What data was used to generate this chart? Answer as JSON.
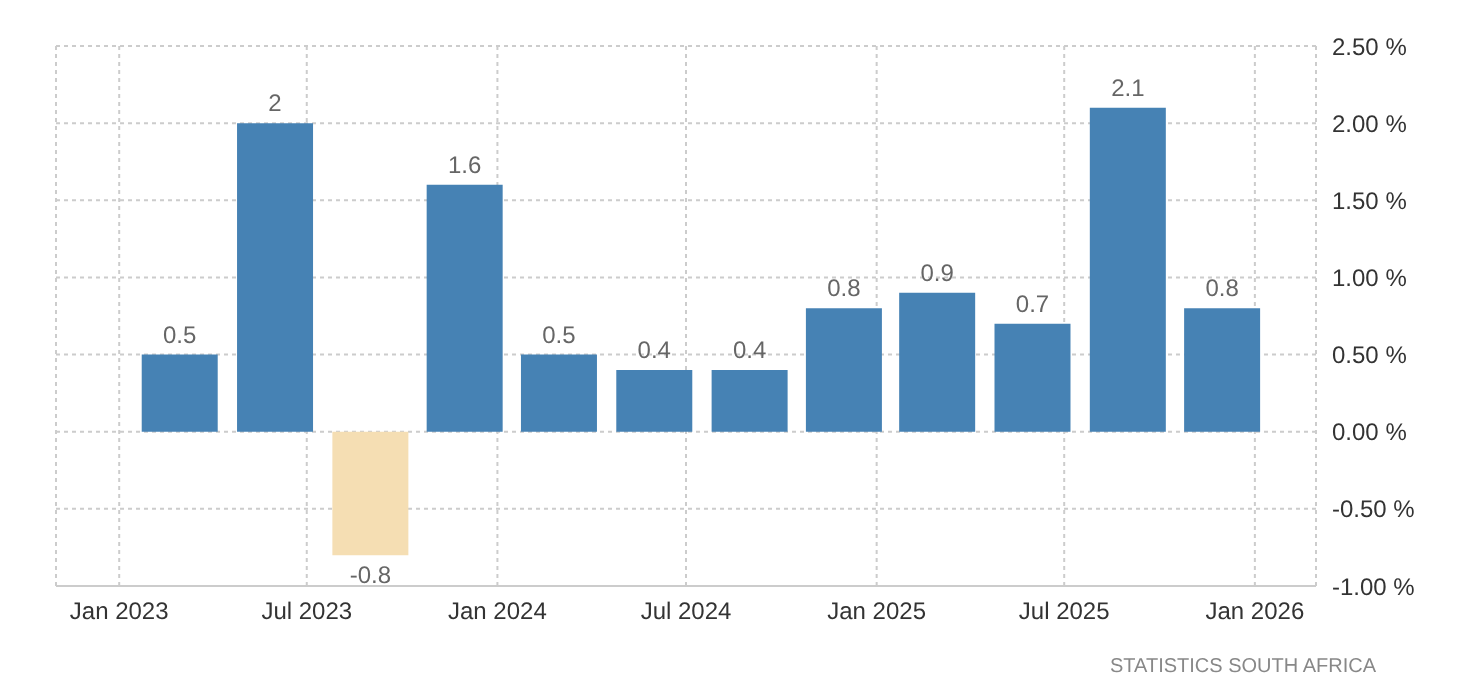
{
  "chart_data": {
    "type": "bar",
    "x": [
      "2023-03",
      "2023-06",
      "2023-09",
      "2023-12",
      "2024-03",
      "2024-06",
      "2024-09",
      "2024-12",
      "2025-03",
      "2025-06",
      "2025-09",
      "2025-12"
    ],
    "values": [
      0.5,
      2,
      -0.8,
      1.6,
      0.5,
      0.4,
      0.4,
      0.8,
      0.9,
      0.7,
      2.1,
      0.8
    ],
    "colors": [
      "#4682b4",
      "#4682b4",
      "#f5deb3",
      "#4682b4",
      "#4682b4",
      "#4682b4",
      "#4682b4",
      "#4682b4",
      "#4682b4",
      "#4682b4",
      "#4682b4",
      "#4682b4"
    ],
    "data_labels": true,
    "xlim": [
      "2022-11",
      "2026-03"
    ],
    "xticks": [
      {
        "value": "2023-01",
        "label": "Jan 2023"
      },
      {
        "value": "2023-07",
        "label": "Jul 2023"
      },
      {
        "value": "2024-01",
        "label": "Jan 2024"
      },
      {
        "value": "2024-07",
        "label": "Jul 2024"
      },
      {
        "value": "2025-01",
        "label": "Jan 2025"
      },
      {
        "value": "2025-07",
        "label": "Jul 2025"
      },
      {
        "value": "2026-01",
        "label": "Jan 2026"
      }
    ],
    "ylim": [
      -1,
      2.5
    ],
    "yticks": [
      {
        "value": -1,
        "label": "-1.00 %"
      },
      {
        "value": -0.5,
        "label": "-0.50 %"
      },
      {
        "value": 0,
        "label": "0.00 %"
      },
      {
        "value": 0.5,
        "label": "0.50 %"
      },
      {
        "value": 1,
        "label": "1.00 %"
      },
      {
        "value": 1.5,
        "label": "1.50 %"
      },
      {
        "value": 2,
        "label": "2.00 %"
      },
      {
        "value": 2.5,
        "label": "2.50 %"
      }
    ],
    "grid": true,
    "annotations": [
      "STATISTICS SOUTH AFRICA"
    ]
  }
}
